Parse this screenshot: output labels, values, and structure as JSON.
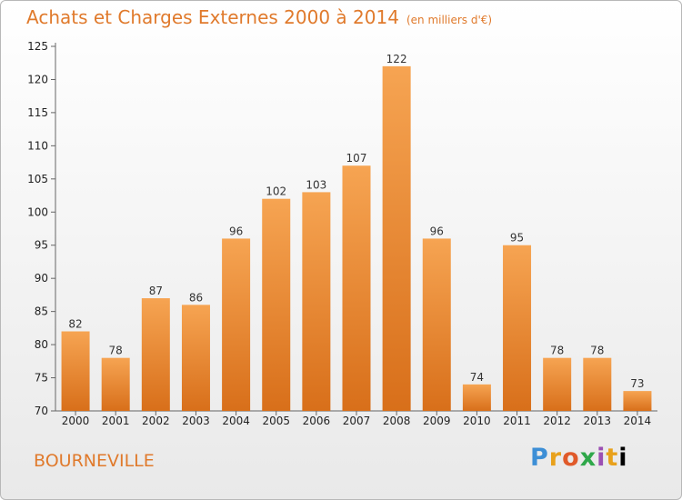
{
  "header": {
    "title": "Achats et Charges Externes 2000 à 2014",
    "unit": "(en milliers d'€)"
  },
  "footer": {
    "city": "BOURNEVILLE",
    "brand": "Proxiti"
  },
  "colors": {
    "bar_light": "#f6a452",
    "bar_dark": "#d86f1a",
    "text_accent": "#e07a2c"
  },
  "chart_data": {
    "type": "bar",
    "title": "Achats et Charges Externes 2000 à 2014",
    "subtitle": "(en milliers d'€)",
    "xlabel": "",
    "ylabel": "",
    "categories": [
      "2000",
      "2001",
      "2002",
      "2003",
      "2004",
      "2005",
      "2006",
      "2007",
      "2008",
      "2009",
      "2010",
      "2011",
      "2012",
      "2013",
      "2014"
    ],
    "values": [
      82,
      78,
      87,
      86,
      96,
      102,
      103,
      107,
      122,
      96,
      74,
      95,
      78,
      78,
      73
    ],
    "ylim": [
      70,
      125
    ],
    "yticks": [
      70,
      75,
      80,
      85,
      90,
      95,
      100,
      105,
      110,
      115,
      120,
      125
    ],
    "grid": false,
    "legend": "none"
  }
}
